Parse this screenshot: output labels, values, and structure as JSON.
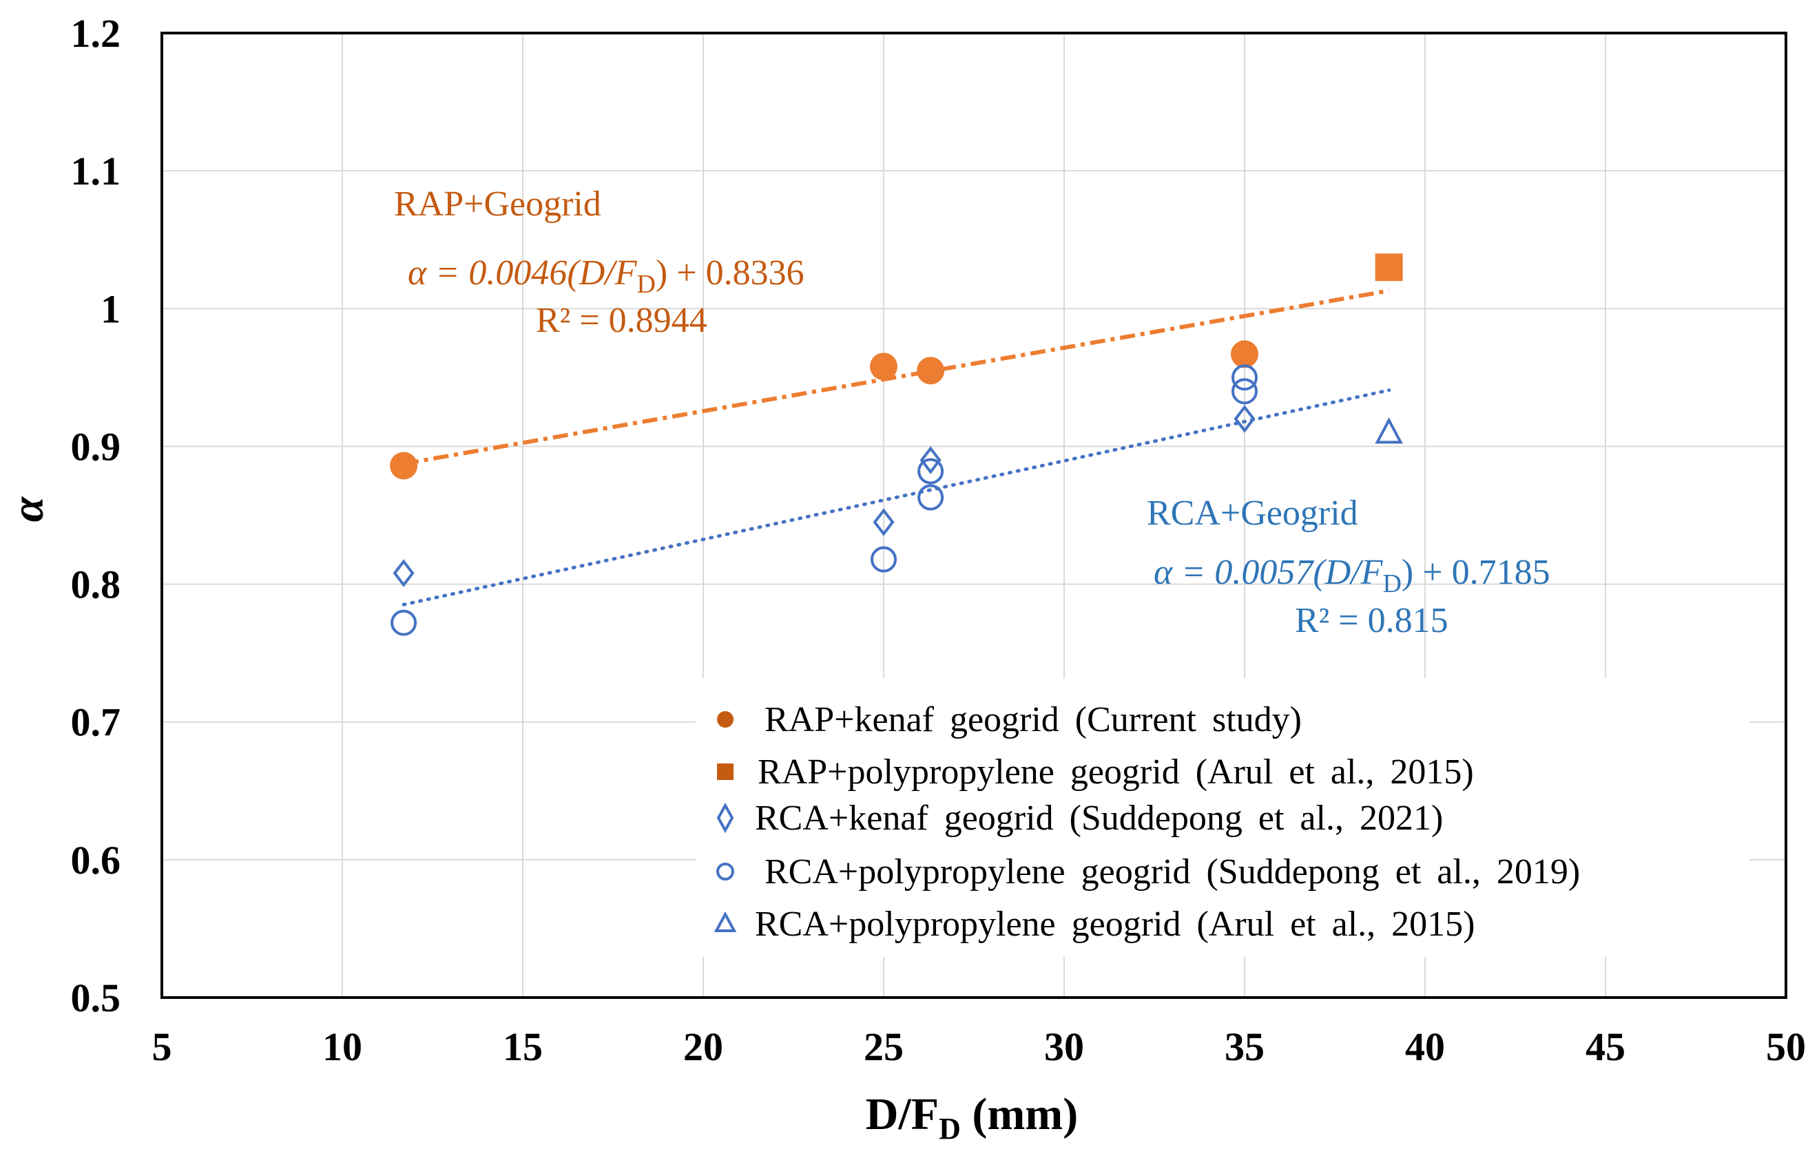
{
  "chart_data": {
    "type": "scatter",
    "title": "",
    "xlabel": {
      "main": "D/F",
      "sub": "D",
      "unit": " (mm)"
    },
    "ylabel": "α",
    "xlim": [
      5,
      50
    ],
    "ylim": [
      0.5,
      1.2
    ],
    "xticks": [
      5,
      10,
      15,
      20,
      25,
      30,
      35,
      40,
      45,
      50
    ],
    "yticks": [
      0.5,
      0.6,
      0.7,
      0.8,
      0.9,
      1.0,
      1.1,
      1.2
    ],
    "ytick_labels": [
      "0.5",
      "0.6",
      "0.7",
      "0.8",
      "0.9",
      "1",
      "1.1",
      "1.2"
    ],
    "grid": true,
    "legend_position": "bottom-right",
    "colors": {
      "orange": "#ED7D31",
      "orange_dark": "#C55A11",
      "blue": "#4472C4",
      "blue_text": "#2E75B6"
    },
    "series": [
      {
        "id": "rap-kenaf",
        "name": "RAP+kenaf geogrid (Current study)",
        "marker": "filled-circle",
        "color": "#ED7D31",
        "points": [
          [
            11.7,
            0.886
          ],
          [
            25.0,
            0.958
          ],
          [
            26.3,
            0.955
          ],
          [
            35.0,
            0.967
          ]
        ]
      },
      {
        "id": "rap-pp",
        "name": "RAP+polypropylene geogrid (Arul et al., 2015)",
        "marker": "filled-square",
        "color": "#ED7D31",
        "points": [
          [
            39.0,
            1.03
          ]
        ]
      },
      {
        "id": "rca-kenaf",
        "name": "RCA+kenaf geogrid (Suddepong et al., 2021)",
        "marker": "open-diamond",
        "color": "#4472C4",
        "points": [
          [
            11.7,
            0.808
          ],
          [
            25.0,
            0.845
          ],
          [
            26.3,
            0.89
          ],
          [
            35.0,
            0.92
          ]
        ]
      },
      {
        "id": "rca-pp-2019",
        "name": "RCA+polypropylene geogrid (Suddepong et al., 2019)",
        "marker": "open-circle",
        "color": "#4472C4",
        "points": [
          [
            11.7,
            0.772
          ],
          [
            25.0,
            0.818
          ],
          [
            26.3,
            0.863
          ],
          [
            26.3,
            0.882
          ],
          [
            35.0,
            0.94
          ],
          [
            35.0,
            0.95
          ]
        ]
      },
      {
        "id": "rca-pp-2015",
        "name": "RCA+polypropylene geogrid (Arul et al., 2015)",
        "marker": "open-triangle",
        "color": "#4472C4",
        "points": [
          [
            39.0,
            0.91
          ]
        ]
      }
    ],
    "trendlines": [
      {
        "id": "rap-trend",
        "group": "RAP+Geogrid",
        "slope": 0.0046,
        "intercept": 0.8336,
        "x_range": [
          11.7,
          39.0
        ],
        "style": "dash-dot",
        "color": "#ED7D31",
        "equation_prefix": "α = 0.0046(D/F",
        "equation_sub": "D",
        "equation_suffix": ")  + 0.8336",
        "r2": "R² = 0.8944"
      },
      {
        "id": "rca-trend",
        "group": "RCA+Geogrid",
        "slope": 0.0057,
        "intercept": 0.7185,
        "x_range": [
          11.7,
          39.0
        ],
        "style": "dotted",
        "color": "#4472C4",
        "equation_prefix": "α = 0.0057(D/F",
        "equation_sub": "D",
        "equation_suffix": ")  + 0.7185",
        "r2": "R² = 0.815"
      }
    ]
  }
}
